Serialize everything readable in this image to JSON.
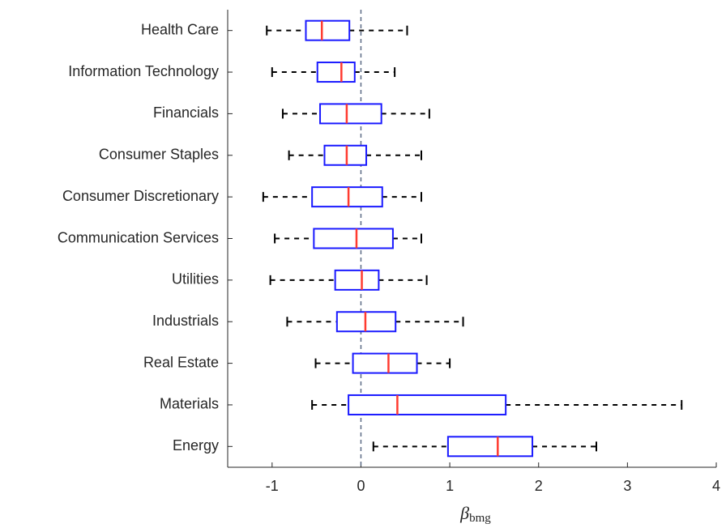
{
  "chart_data": {
    "type": "boxplot",
    "orientation": "horizontal",
    "categories": [
      "Health Care",
      "Information Technology",
      "Financials",
      "Consumer Staples",
      "Consumer Discretionary",
      "Communication Services",
      "Utilities",
      "Industrials",
      "Real Estate",
      "Materials",
      "Energy"
    ],
    "min": [
      -1.06,
      -1.0,
      -0.88,
      -0.81,
      -1.1,
      -0.97,
      -1.02,
      -0.83,
      -0.51,
      -0.55,
      0.14
    ],
    "q1": [
      -0.62,
      -0.49,
      -0.46,
      -0.41,
      -0.55,
      -0.53,
      -0.29,
      -0.27,
      -0.09,
      -0.14,
      0.98
    ],
    "median": [
      -0.44,
      -0.22,
      -0.16,
      -0.16,
      -0.14,
      -0.05,
      0.01,
      0.05,
      0.31,
      0.41,
      1.54
    ],
    "q3": [
      -0.13,
      -0.07,
      0.23,
      0.06,
      0.24,
      0.36,
      0.2,
      0.39,
      0.63,
      1.63,
      1.93
    ],
    "max": [
      0.52,
      0.38,
      0.77,
      0.68,
      0.68,
      0.68,
      0.74,
      1.15,
      1.0,
      3.61,
      2.65
    ],
    "box_color": "#1a1aff",
    "median_color": "#ff3b30",
    "whisker_color": "#000000",
    "reference_line": 0,
    "reference_color": "#5a6b85",
    "xlim": [
      -1.5,
      4
    ],
    "xticks": [
      {
        "value": -1,
        "label": "-1"
      },
      0,
      1,
      2,
      3,
      4
    ],
    "xlabel": "β",
    "xlabel_sub": "bmg"
  }
}
